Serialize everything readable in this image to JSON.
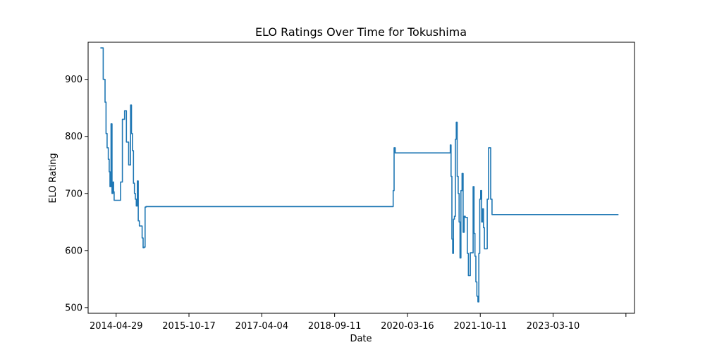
{
  "chart_data": {
    "type": "line",
    "title": "ELO Ratings Over Time for Tokushima",
    "xlabel": "Date",
    "ylabel": "ELO Rating",
    "x_ticks": [
      "2014-04-29",
      "2015-10-17",
      "2017-04-04",
      "2018-09-11",
      "2020-03-16",
      "2021-10-11",
      "2023-03-10",
      ""
    ],
    "y_ticks": [
      500,
      600,
      700,
      800,
      900
    ],
    "ylim": [
      490,
      965
    ],
    "xlim": [
      "2013-10-01",
      "2024-12-18"
    ],
    "grid": false,
    "line_color": "#1f77b4",
    "series": [
      {
        "x": [
          "2014-01-01",
          "2014-01-15",
          "2014-01-22",
          "2014-02-05",
          "2014-02-12",
          "2014-02-20",
          "2014-03-01",
          "2014-03-08",
          "2014-03-14",
          "2014-03-22",
          "2014-03-29",
          "2014-04-05",
          "2014-04-10",
          "2014-04-14",
          "2014-04-18",
          "2014-04-22",
          "2014-04-29",
          "2014-05-06",
          "2014-05-12",
          "2014-05-20",
          "2014-06-01",
          "2014-06-15",
          "2014-07-01",
          "2014-07-15",
          "2014-08-01",
          "2014-08-15",
          "2014-08-22",
          "2014-08-29",
          "2014-09-06",
          "2014-09-13",
          "2014-09-20",
          "2014-09-27",
          "2014-10-05",
          "2014-10-12",
          "2014-10-20",
          "2014-10-27",
          "2014-11-03",
          "2014-11-10",
          "2014-11-17",
          "2014-11-25",
          "2014-12-02",
          "2014-12-09",
          "2014-12-20",
          "2015-01-05",
          "2015-01-16",
          "2015-01-25",
          "2015-01-31",
          "2015-02-08",
          "2015-02-15",
          "2015-02-22",
          "2015-03-06",
          "2015-03-15",
          "2015-03-20",
          "2020-01-03",
          "2020-01-05",
          "2020-01-10",
          "2020-01-12",
          "2020-01-20",
          "2021-01-25",
          "2021-02-05",
          "2021-02-12",
          "2021-02-18",
          "2021-02-24",
          "2021-03-02",
          "2021-03-08",
          "2021-03-14",
          "2021-03-20",
          "2021-03-26",
          "2021-04-01",
          "2021-04-08",
          "2021-04-15",
          "2021-04-22",
          "2021-04-29",
          "2021-05-06",
          "2021-05-13",
          "2021-05-20",
          "2021-05-27",
          "2021-06-04",
          "2021-06-12",
          "2021-06-20",
          "2021-06-28",
          "2021-07-06",
          "2021-07-14",
          "2021-07-22",
          "2021-08-05",
          "2021-08-12",
          "2021-08-19",
          "2021-08-26",
          "2021-09-02",
          "2021-09-09",
          "2021-09-16",
          "2021-09-23",
          "2021-10-01",
          "2021-10-08",
          "2021-10-15",
          "2021-10-22",
          "2021-10-29",
          "2021-11-05",
          "2021-11-12",
          "2021-11-19",
          "2021-11-26",
          "2021-12-03",
          "2021-12-10",
          "2021-12-20",
          "2022-01-05",
          "2022-01-15",
          "2022-01-22",
          "2022-01-29",
          "2022-02-05",
          "2022-02-12",
          "2022-02-19",
          "2022-02-28",
          "2024-08-20"
        ],
        "y": [
          955,
          955,
          900,
          860,
          805,
          780,
          760,
          738,
          712,
          822,
          700,
          720,
          703,
          688,
          688,
          688,
          688,
          688,
          688,
          688,
          720,
          830,
          845,
          790,
          750,
          855,
          805,
          775,
          718,
          700,
          690,
          678,
          722,
          652,
          643,
          643,
          643,
          622,
          605,
          606,
          676,
          677,
          677,
          677,
          677,
          677,
          677,
          677,
          677,
          677,
          677,
          677,
          677,
          677,
          705,
          705,
          780,
          771,
          771,
          771,
          771,
          771,
          771,
          771,
          785,
          730,
          620,
          595,
          655,
          660,
          795,
          825,
          730,
          700,
          650,
          587,
          705,
          735,
          632,
          660,
          658,
          658,
          595,
          556,
          596,
          596,
          596,
          712,
          630,
          590,
          545,
          520,
          510,
          595,
          690,
          705,
          650,
          673,
          640,
          603,
          603,
          603,
          690,
          780,
          690,
          663,
          663,
          663,
          663,
          663,
          663,
          663,
          663
        ]
      }
    ]
  }
}
